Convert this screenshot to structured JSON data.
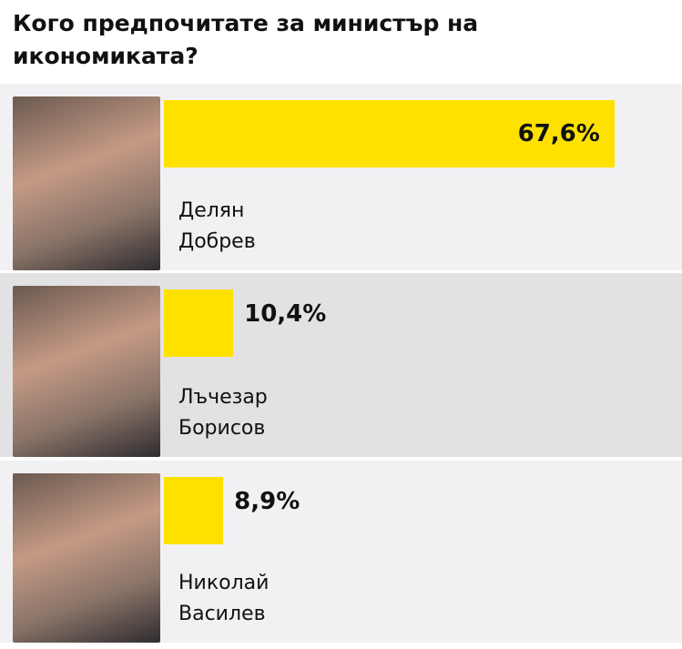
{
  "chart_data": {
    "type": "bar",
    "title": "Кого предпочитате за министър на икономиката?",
    "categories": [
      "Делян Добрев",
      "Лъчезар Борисов",
      "Николай Василев"
    ],
    "values": [
      67.6,
      10.4,
      8.9
    ],
    "value_labels": [
      "67,6%",
      "10,4%",
      "8,9%"
    ],
    "color": "#ffe100"
  }
}
